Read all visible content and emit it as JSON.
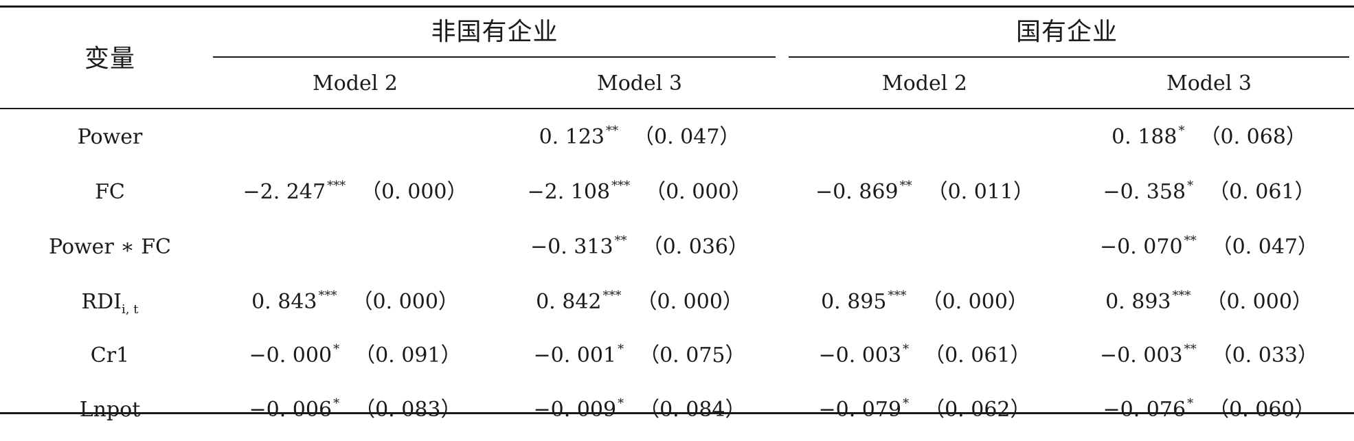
{
  "header": {
    "variable_label": "变量",
    "groups": [
      "非国有企业",
      "国有企业"
    ],
    "models": [
      "Model 2",
      "Model 3",
      "Model 2",
      "Model 3"
    ]
  },
  "rows": [
    {
      "var": "Power",
      "var_sub": "",
      "cells": [
        {
          "coef": "",
          "stars": "",
          "p": ""
        },
        {
          "coef": "0. 123",
          "stars": "**",
          "p": "（0. 047）"
        },
        {
          "coef": "",
          "stars": "",
          "p": ""
        },
        {
          "coef": "0. 188",
          "stars": "*",
          "p": "（0. 068）"
        }
      ]
    },
    {
      "var": "FC",
      "var_sub": "",
      "cells": [
        {
          "coef": "−2. 247",
          "stars": "***",
          "p": "（0. 000）"
        },
        {
          "coef": "−2. 108",
          "stars": "***",
          "p": "（0. 000）"
        },
        {
          "coef": "−0. 869",
          "stars": "**",
          "p": "（0. 011）"
        },
        {
          "coef": "−0. 358",
          "stars": "*",
          "p": "（0. 061）"
        }
      ]
    },
    {
      "var": "Power ∗ FC",
      "var_sub": "",
      "cells": [
        {
          "coef": "",
          "stars": "",
          "p": ""
        },
        {
          "coef": "−0. 313",
          "stars": "**",
          "p": "（0. 036）"
        },
        {
          "coef": "",
          "stars": "",
          "p": ""
        },
        {
          "coef": "−0. 070",
          "stars": "**",
          "p": "（0. 047）"
        }
      ]
    },
    {
      "var": "RDI",
      "var_sub": "i, t",
      "cells": [
        {
          "coef": "0. 843",
          "stars": "***",
          "p": "（0. 000）"
        },
        {
          "coef": "0. 842",
          "stars": "***",
          "p": "（0. 000）"
        },
        {
          "coef": "0. 895",
          "stars": "***",
          "p": "（0. 000）"
        },
        {
          "coef": "0. 893",
          "stars": "***",
          "p": "（0. 000）"
        }
      ]
    },
    {
      "var": "Cr1",
      "var_sub": "",
      "cells": [
        {
          "coef": "−0. 000",
          "stars": "*",
          "p": "（0. 091）"
        },
        {
          "coef": "−0. 001",
          "stars": "*",
          "p": "（0. 075）"
        },
        {
          "coef": "−0. 003",
          "stars": "*",
          "p": "（0. 061）"
        },
        {
          "coef": "−0. 003",
          "stars": "**",
          "p": "（0. 033）"
        }
      ]
    },
    {
      "var": "Lnpot",
      "var_sub": "",
      "cells": [
        {
          "coef": "−0. 006",
          "stars": "*",
          "p": "（0. 083）"
        },
        {
          "coef": "−0. 009",
          "stars": "*",
          "p": "（0. 084）"
        },
        {
          "coef": "−0. 079",
          "stars": "*",
          "p": "（0. 062）"
        },
        {
          "coef": "−0. 076",
          "stars": "*",
          "p": "（0. 060）"
        }
      ]
    }
  ]
}
